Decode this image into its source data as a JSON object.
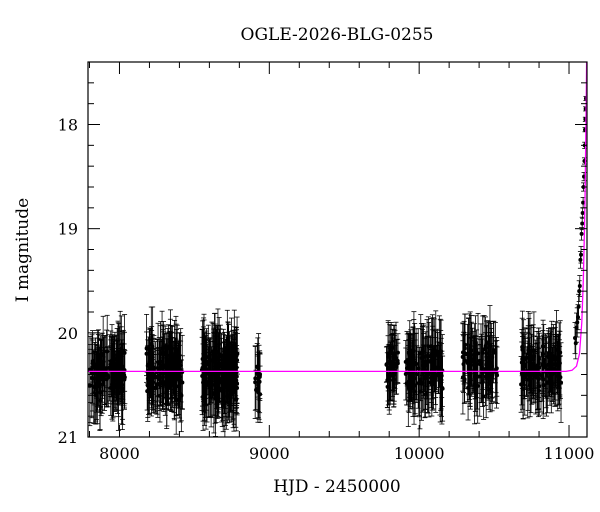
{
  "chart_data": {
    "type": "scatter",
    "title": "OGLE-2026-BLG-0255",
    "xlabel": "HJD - 2450000",
    "ylabel": "I magnitude",
    "xlim": [
      7790,
      11120
    ],
    "ylim": [
      21,
      17.4
    ],
    "y_inverted": true,
    "grid": false,
    "x_ticks": [
      8000,
      9000,
      10000,
      11000
    ],
    "y_ticks": [
      18,
      19,
      20,
      21
    ],
    "x_minor_step": 200,
    "y_minor_step": 0.2,
    "colors": {
      "data": "#000000",
      "model": "#ff00ff",
      "frame": "#000000"
    },
    "series": [
      {
        "kind": "observations",
        "seasons": [
          {
            "start": 7800,
            "end": 8040,
            "mean": 20.38,
            "spread": 0.22,
            "error": 0.3,
            "count": 120
          },
          {
            "start": 8180,
            "end": 8420,
            "mean": 20.38,
            "spread": 0.22,
            "error": 0.3,
            "count": 150
          },
          {
            "start": 8550,
            "end": 8790,
            "mean": 20.38,
            "spread": 0.24,
            "error": 0.32,
            "count": 170
          },
          {
            "start": 8900,
            "end": 8940,
            "mean": 20.45,
            "spread": 0.2,
            "error": 0.28,
            "count": 16
          },
          {
            "start": 9780,
            "end": 9860,
            "mean": 20.3,
            "spread": 0.2,
            "error": 0.28,
            "count": 40
          },
          {
            "start": 9910,
            "end": 10160,
            "mean": 20.35,
            "spread": 0.2,
            "error": 0.3,
            "count": 110
          },
          {
            "start": 10290,
            "end": 10520,
            "mean": 20.32,
            "spread": 0.2,
            "error": 0.3,
            "count": 95
          },
          {
            "start": 10680,
            "end": 10950,
            "mean": 20.33,
            "spread": 0.2,
            "error": 0.3,
            "count": 120
          }
        ],
        "rise_points": [
          [
            11040,
            20.05,
            0.15
          ],
          [
            11045,
            20.1,
            0.15
          ],
          [
            11050,
            19.95,
            0.14
          ],
          [
            11055,
            19.9,
            0.14
          ],
          [
            11060,
            19.85,
            0.12
          ],
          [
            11064,
            19.75,
            0.12
          ],
          [
            11068,
            19.6,
            0.1
          ],
          [
            11072,
            19.55,
            0.1
          ],
          [
            11076,
            19.3,
            0.08
          ],
          [
            11080,
            19.25,
            0.08
          ],
          [
            11084,
            19.05,
            0.06
          ],
          [
            11088,
            18.95,
            0.06
          ],
          [
            11091,
            18.85,
            0.05
          ],
          [
            11094,
            18.75,
            0.05
          ],
          [
            11097,
            18.6,
            0.04
          ],
          [
            11100,
            18.5,
            0.04
          ],
          [
            11103,
            18.35,
            0.03
          ],
          [
            11105,
            18.2,
            0.03
          ],
          [
            11107,
            18.05,
            0.02
          ],
          [
            11109,
            17.95,
            0.02
          ],
          [
            11111,
            17.85,
            0.02
          ],
          [
            11113,
            17.75,
            0.02
          ]
        ]
      },
      {
        "kind": "model",
        "baseline": 20.37,
        "curve": [
          [
            7790,
            20.37
          ],
          [
            10980,
            20.37
          ],
          [
            11020,
            20.36
          ],
          [
            11050,
            20.32
          ],
          [
            11070,
            20.2
          ],
          [
            11085,
            19.9
          ],
          [
            11095,
            19.5
          ],
          [
            11103,
            19.0
          ],
          [
            11108,
            18.6
          ],
          [
            11112,
            18.1
          ],
          [
            11115,
            17.7
          ],
          [
            11117,
            17.4
          ]
        ]
      }
    ]
  }
}
